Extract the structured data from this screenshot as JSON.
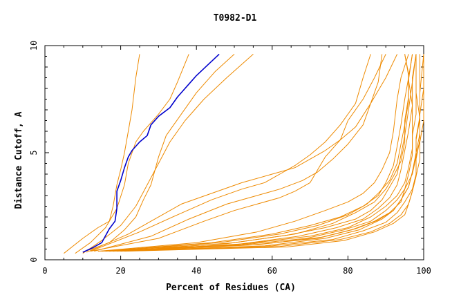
{
  "chart_data": {
    "type": "line",
    "title": "T0982-D1",
    "xlabel": "Percent of Residues (CA)",
    "ylabel": "Distance Cutoff, A",
    "xlim": [
      0,
      100
    ],
    "ylim": [
      0,
      10
    ],
    "x_ticks": [
      "0",
      "20",
      "40",
      "60",
      "80",
      "100"
    ],
    "y_ticks": [
      "0",
      "5",
      "10"
    ],
    "grid": false,
    "legend": "none",
    "colors": {
      "highlight": "#0000cc",
      "others": "#ee8a00"
    },
    "highlight_series": [
      [
        10,
        0.35
      ],
      [
        12.5,
        0.55
      ],
      [
        15,
        0.8
      ],
      [
        17,
        1.45
      ],
      [
        18.5,
        1.8
      ],
      [
        19,
        2.4
      ],
      [
        19,
        3.2
      ],
      [
        20,
        3.7
      ],
      [
        21,
        4.3
      ],
      [
        22,
        4.8
      ],
      [
        23,
        5.1
      ],
      [
        25,
        5.5
      ],
      [
        27,
        5.8
      ],
      [
        28,
        6.3
      ],
      [
        30,
        6.7
      ],
      [
        33,
        7.1
      ],
      [
        35,
        7.6
      ],
      [
        38,
        8.2
      ],
      [
        40,
        8.6
      ],
      [
        43,
        9.1
      ],
      [
        46,
        9.6
      ]
    ],
    "other_series": [
      [
        [
          5,
          0.3
        ],
        [
          10,
          1.0
        ],
        [
          14,
          1.5
        ],
        [
          17,
          1.8
        ],
        [
          18,
          2.5
        ],
        [
          19,
          3.5
        ],
        [
          20,
          4.2
        ],
        [
          21,
          5.0
        ],
        [
          22,
          6.0
        ],
        [
          23,
          7.0
        ],
        [
          24,
          8.5
        ],
        [
          25,
          9.6
        ]
      ],
      [
        [
          8,
          0.3
        ],
        [
          12,
          0.8
        ],
        [
          16,
          1.5
        ],
        [
          19,
          2.4
        ],
        [
          21,
          3.5
        ],
        [
          22,
          4.5
        ],
        [
          24,
          5.5
        ],
        [
          26,
          6.0
        ],
        [
          30,
          6.8
        ],
        [
          33,
          7.5
        ],
        [
          35,
          8.3
        ],
        [
          38,
          9.6
        ]
      ],
      [
        [
          10,
          0.3
        ],
        [
          15,
          0.9
        ],
        [
          20,
          1.6
        ],
        [
          24,
          2.5
        ],
        [
          27,
          3.5
        ],
        [
          30,
          4.5
        ],
        [
          33,
          5.5
        ],
        [
          37,
          6.5
        ],
        [
          42,
          7.5
        ],
        [
          48,
          8.5
        ],
        [
          55,
          9.6
        ]
      ],
      [
        [
          10,
          0.35
        ],
        [
          17,
          0.8
        ],
        [
          21,
          1.4
        ],
        [
          24,
          2.0
        ],
        [
          26,
          2.8
        ],
        [
          28,
          3.5
        ],
        [
          30,
          4.8
        ],
        [
          32,
          5.8
        ],
        [
          36,
          6.8
        ],
        [
          40,
          7.8
        ],
        [
          45,
          8.8
        ],
        [
          50,
          9.6
        ]
      ],
      [
        [
          11,
          0.35
        ],
        [
          22,
          1.2
        ],
        [
          28,
          1.8
        ],
        [
          36,
          2.6
        ],
        [
          44,
          3.1
        ],
        [
          52,
          3.6
        ],
        [
          60,
          4.0
        ],
        [
          66,
          4.3
        ],
        [
          70,
          4.7
        ],
        [
          74,
          5.1
        ],
        [
          78,
          5.6
        ],
        [
          82,
          6.2
        ],
        [
          86,
          7.3
        ],
        [
          88,
          8.3
        ],
        [
          89,
          9.6
        ]
      ],
      [
        [
          12,
          0.4
        ],
        [
          25,
          1.3
        ],
        [
          35,
          2.1
        ],
        [
          44,
          2.8
        ],
        [
          52,
          3.3
        ],
        [
          58,
          3.6
        ],
        [
          62,
          4.0
        ],
        [
          66,
          4.4
        ],
        [
          70,
          4.9
        ],
        [
          74,
          5.5
        ],
        [
          78,
          6.3
        ],
        [
          82,
          7.3
        ],
        [
          84,
          8.5
        ],
        [
          86,
          9.6
        ]
      ],
      [
        [
          12,
          0.4
        ],
        [
          30,
          1.0
        ],
        [
          42,
          1.8
        ],
        [
          50,
          2.3
        ],
        [
          56,
          2.6
        ],
        [
          62,
          2.9
        ],
        [
          66,
          3.2
        ],
        [
          70,
          3.6
        ],
        [
          72,
          4.2
        ],
        [
          74,
          4.8
        ],
        [
          78,
          5.6
        ],
        [
          80,
          6.5
        ],
        [
          84,
          7.5
        ],
        [
          87,
          8.5
        ],
        [
          90,
          9.6
        ]
      ],
      [
        [
          13,
          0.4
        ],
        [
          28,
          1.1
        ],
        [
          38,
          1.9
        ],
        [
          48,
          2.6
        ],
        [
          56,
          3.0
        ],
        [
          62,
          3.3
        ],
        [
          68,
          3.7
        ],
        [
          72,
          4.1
        ],
        [
          76,
          4.7
        ],
        [
          80,
          5.4
        ],
        [
          84,
          6.3
        ],
        [
          86,
          7.3
        ],
        [
          90,
          8.5
        ],
        [
          93,
          9.6
        ]
      ],
      [
        [
          14,
          0.4
        ],
        [
          40,
          0.8
        ],
        [
          56,
          1.3
        ],
        [
          66,
          1.8
        ],
        [
          74,
          2.3
        ],
        [
          80,
          2.7
        ],
        [
          84,
          3.1
        ],
        [
          87,
          3.6
        ],
        [
          89,
          4.2
        ],
        [
          91,
          5.0
        ],
        [
          92,
          6.0
        ],
        [
          93,
          7.5
        ],
        [
          94,
          8.5
        ],
        [
          96,
          9.6
        ]
      ],
      [
        [
          15,
          0.4
        ],
        [
          44,
          0.8
        ],
        [
          60,
          1.2
        ],
        [
          70,
          1.6
        ],
        [
          78,
          2.0
        ],
        [
          84,
          2.5
        ],
        [
          88,
          3.0
        ],
        [
          90,
          3.6
        ],
        [
          92,
          4.4
        ],
        [
          93,
          5.3
        ],
        [
          94,
          6.3
        ],
        [
          95,
          7.5
        ],
        [
          96,
          8.5
        ],
        [
          97,
          9.6
        ]
      ],
      [
        [
          14,
          0.4
        ],
        [
          48,
          0.75
        ],
        [
          64,
          1.15
        ],
        [
          74,
          1.5
        ],
        [
          82,
          1.9
        ],
        [
          86,
          2.3
        ],
        [
          89,
          2.8
        ],
        [
          91,
          3.4
        ],
        [
          93,
          4.0
        ],
        [
          94,
          4.9
        ],
        [
          95,
          5.8
        ],
        [
          96,
          7.0
        ],
        [
          97,
          8.3
        ],
        [
          98,
          9.6
        ]
      ],
      [
        [
          15,
          0.4
        ],
        [
          50,
          0.7
        ],
        [
          67,
          1.1
        ],
        [
          77,
          1.5
        ],
        [
          84,
          1.9
        ],
        [
          88,
          2.4
        ],
        [
          91,
          2.9
        ],
        [
          93,
          3.5
        ],
        [
          94,
          4.2
        ],
        [
          95,
          5.1
        ],
        [
          96,
          6.0
        ],
        [
          97,
          7.2
        ],
        [
          97,
          8.5
        ],
        [
          98,
          9.6
        ]
      ],
      [
        [
          16,
          0.4
        ],
        [
          46,
          0.8
        ],
        [
          62,
          1.2
        ],
        [
          72,
          1.6
        ],
        [
          80,
          2.1
        ],
        [
          85,
          2.6
        ],
        [
          88,
          3.1
        ],
        [
          91,
          3.7
        ],
        [
          93,
          4.5
        ],
        [
          94,
          5.4
        ],
        [
          95,
          6.3
        ],
        [
          96,
          7.4
        ],
        [
          96,
          8.6
        ],
        [
          95,
          9.6
        ]
      ],
      [
        [
          16,
          0.4
        ],
        [
          52,
          0.7
        ],
        [
          69,
          1.0
        ],
        [
          79,
          1.4
        ],
        [
          86,
          1.8
        ],
        [
          90,
          2.3
        ],
        [
          93,
          2.8
        ],
        [
          95,
          3.3
        ],
        [
          96,
          4.0
        ],
        [
          97,
          4.9
        ],
        [
          97,
          5.8
        ],
        [
          98,
          6.8
        ],
        [
          98,
          8.0
        ],
        [
          98,
          9.6
        ]
      ],
      [
        [
          17,
          0.4
        ],
        [
          55,
          0.7
        ],
        [
          72,
          1.0
        ],
        [
          81,
          1.4
        ],
        [
          87,
          1.8
        ],
        [
          91,
          2.2
        ],
        [
          94,
          2.7
        ],
        [
          95,
          3.3
        ],
        [
          97,
          4.0
        ],
        [
          98,
          4.8
        ],
        [
          98,
          5.6
        ],
        [
          99,
          6.6
        ],
        [
          99,
          8.0
        ],
        [
          99,
          9.6
        ]
      ],
      [
        [
          17,
          0.4
        ],
        [
          58,
          0.65
        ],
        [
          74,
          1.0
        ],
        [
          83,
          1.4
        ],
        [
          89,
          1.9
        ],
        [
          92,
          2.3
        ],
        [
          94,
          2.8
        ],
        [
          96,
          3.4
        ],
        [
          97,
          4.1
        ],
        [
          98,
          5.0
        ],
        [
          99,
          5.9
        ],
        [
          99,
          6.8
        ],
        [
          100,
          8.0
        ],
        [
          100,
          9.6
        ]
      ],
      [
        [
          18,
          0.4
        ],
        [
          53,
          0.75
        ],
        [
          70,
          1.1
        ],
        [
          80,
          1.5
        ],
        [
          86,
          2.0
        ],
        [
          90,
          2.5
        ],
        [
          93,
          3.0
        ],
        [
          95,
          3.6
        ],
        [
          96,
          4.3
        ],
        [
          97,
          5.2
        ],
        [
          97,
          6.1
        ],
        [
          97,
          7.2
        ],
        [
          96,
          8.4
        ],
        [
          97,
          9.6
        ]
      ],
      [
        [
          18,
          0.4
        ],
        [
          56,
          0.7
        ],
        [
          73,
          1.05
        ],
        [
          82,
          1.45
        ],
        [
          88,
          1.85
        ],
        [
          92,
          2.3
        ],
        [
          94,
          2.8
        ],
        [
          96,
          3.4
        ],
        [
          97,
          4.1
        ],
        [
          98,
          4.9
        ],
        [
          98,
          5.7
        ],
        [
          99,
          6.7
        ],
        [
          99,
          7.9
        ],
        [
          99,
          9.6
        ]
      ],
      [
        [
          19,
          0.4
        ],
        [
          60,
          0.65
        ],
        [
          76,
          0.95
        ],
        [
          84,
          1.35
        ],
        [
          90,
          1.75
        ],
        [
          93,
          2.2
        ],
        [
          95,
          2.7
        ],
        [
          97,
          3.3
        ],
        [
          98,
          4.0
        ],
        [
          98,
          4.8
        ],
        [
          99,
          5.6
        ],
        [
          99,
          6.6
        ],
        [
          99,
          7.8
        ],
        [
          100,
          9.6
        ]
      ],
      [
        [
          20,
          0.4
        ],
        [
          62,
          0.62
        ],
        [
          78,
          0.95
        ],
        [
          86,
          1.3
        ],
        [
          91,
          1.7
        ],
        [
          94,
          2.1
        ],
        [
          96,
          2.6
        ],
        [
          97,
          3.2
        ],
        [
          98,
          3.9
        ],
        [
          99,
          4.7
        ],
        [
          99,
          5.5
        ],
        [
          100,
          6.5
        ],
        [
          100,
          7.7
        ],
        [
          100,
          9.6
        ]
      ],
      [
        [
          20,
          0.4
        ],
        [
          50,
          0.8
        ],
        [
          66,
          1.2
        ],
        [
          76,
          1.7
        ],
        [
          82,
          2.2
        ],
        [
          87,
          2.7
        ],
        [
          90,
          3.3
        ],
        [
          92,
          3.9
        ],
        [
          94,
          4.6
        ],
        [
          95,
          5.5
        ],
        [
          95,
          6.5
        ],
        [
          96,
          7.6
        ],
        [
          96,
          8.7
        ],
        [
          95,
          9.6
        ]
      ],
      [
        [
          21,
          0.4
        ],
        [
          64,
          0.6
        ],
        [
          79,
          0.9
        ],
        [
          87,
          1.3
        ],
        [
          92,
          1.7
        ],
        [
          95,
          2.1
        ],
        [
          96,
          2.6
        ],
        [
          97,
          3.2
        ],
        [
          98,
          3.9
        ],
        [
          98,
          4.7
        ],
        [
          99,
          5.6
        ],
        [
          99,
          6.6
        ],
        [
          98,
          7.8
        ],
        [
          98,
          9.6
        ]
      ]
    ]
  }
}
